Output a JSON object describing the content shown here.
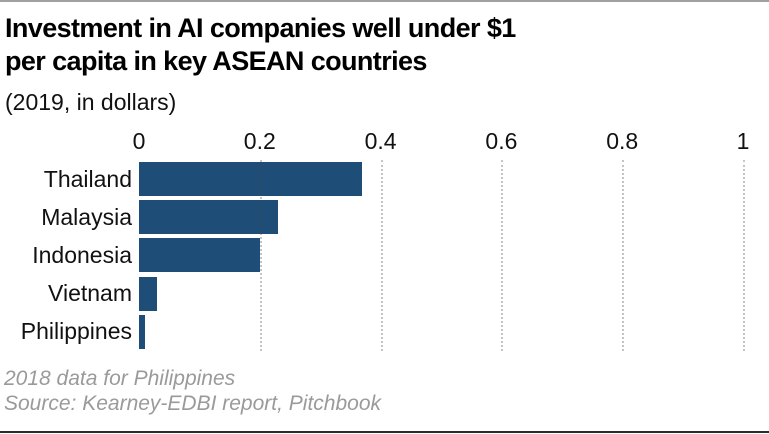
{
  "header": {
    "title_line1": "Investment in AI companies well under $1",
    "title_line2": "per capita in key ASEAN countries",
    "subtitle": "(2019, in dollars)"
  },
  "chart_data": {
    "type": "bar",
    "orientation": "horizontal",
    "title": "Investment in AI companies well under $1 per capita in key ASEAN countries",
    "subtitle": "(2019, in dollars)",
    "categories": [
      "Thailand",
      "Malaysia",
      "Indonesia",
      "Vietnam",
      "Philippines"
    ],
    "values": [
      0.37,
      0.23,
      0.2,
      0.03,
      0.01
    ],
    "xlabel": "",
    "ylabel": "",
    "xlim": [
      0,
      1
    ],
    "xticks": [
      0,
      0.2,
      0.4,
      0.6,
      0.8,
      1
    ],
    "xtick_labels": [
      "0",
      "0.2",
      "0.4",
      "0.6",
      "0.8",
      "1"
    ],
    "grid": "vertical dotted gridlines at ticks greater than 0, drawn over bars",
    "legend": false,
    "axis_position": "top",
    "bar_color": "#1e4d78"
  },
  "footer": {
    "note": "2018 data for Philippines",
    "source": "Source: Kearney-EDBI report, Pitchbook"
  },
  "colors": {
    "bar": "#1e4d78",
    "text": "#111111",
    "footnote": "#9a9a9a",
    "gridline": "#bdbdbd",
    "top_rule": "#a0a0a0",
    "bottom_rule": "#2b2b2b"
  }
}
